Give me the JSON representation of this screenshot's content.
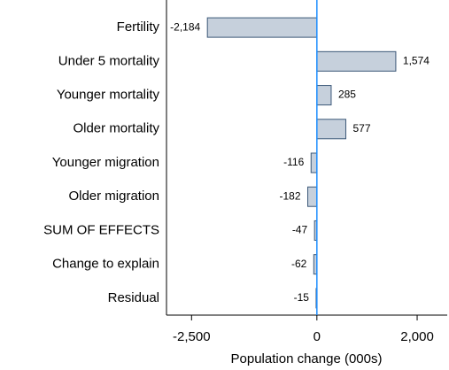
{
  "chart_data": {
    "type": "barh",
    "categories": [
      "Fertility",
      "Under 5 mortality",
      "Younger mortality",
      "Older mortality",
      "Younger migration",
      "Older migration",
      "SUM OF EFFECTS",
      "Change to explain",
      "Residual"
    ],
    "values": [
      -2184,
      1574,
      285,
      577,
      -116,
      -182,
      -47,
      -62,
      -15
    ],
    "value_labels": [
      "-2,184",
      "1,574",
      "285",
      "577",
      "-116",
      "-182",
      "-47",
      "-62",
      "-15"
    ],
    "color": "#c6d0dc",
    "edge_color": "#3b5878",
    "zero_line_color": "#1e8fff",
    "xlabel": "Population change (000s)",
    "xlim": [
      -3000,
      2600
    ],
    "xticks": [
      {
        "value": -2500,
        "label": "-2,500"
      },
      0,
      {
        "value": 2000,
        "label": "2,000"
      }
    ]
  }
}
